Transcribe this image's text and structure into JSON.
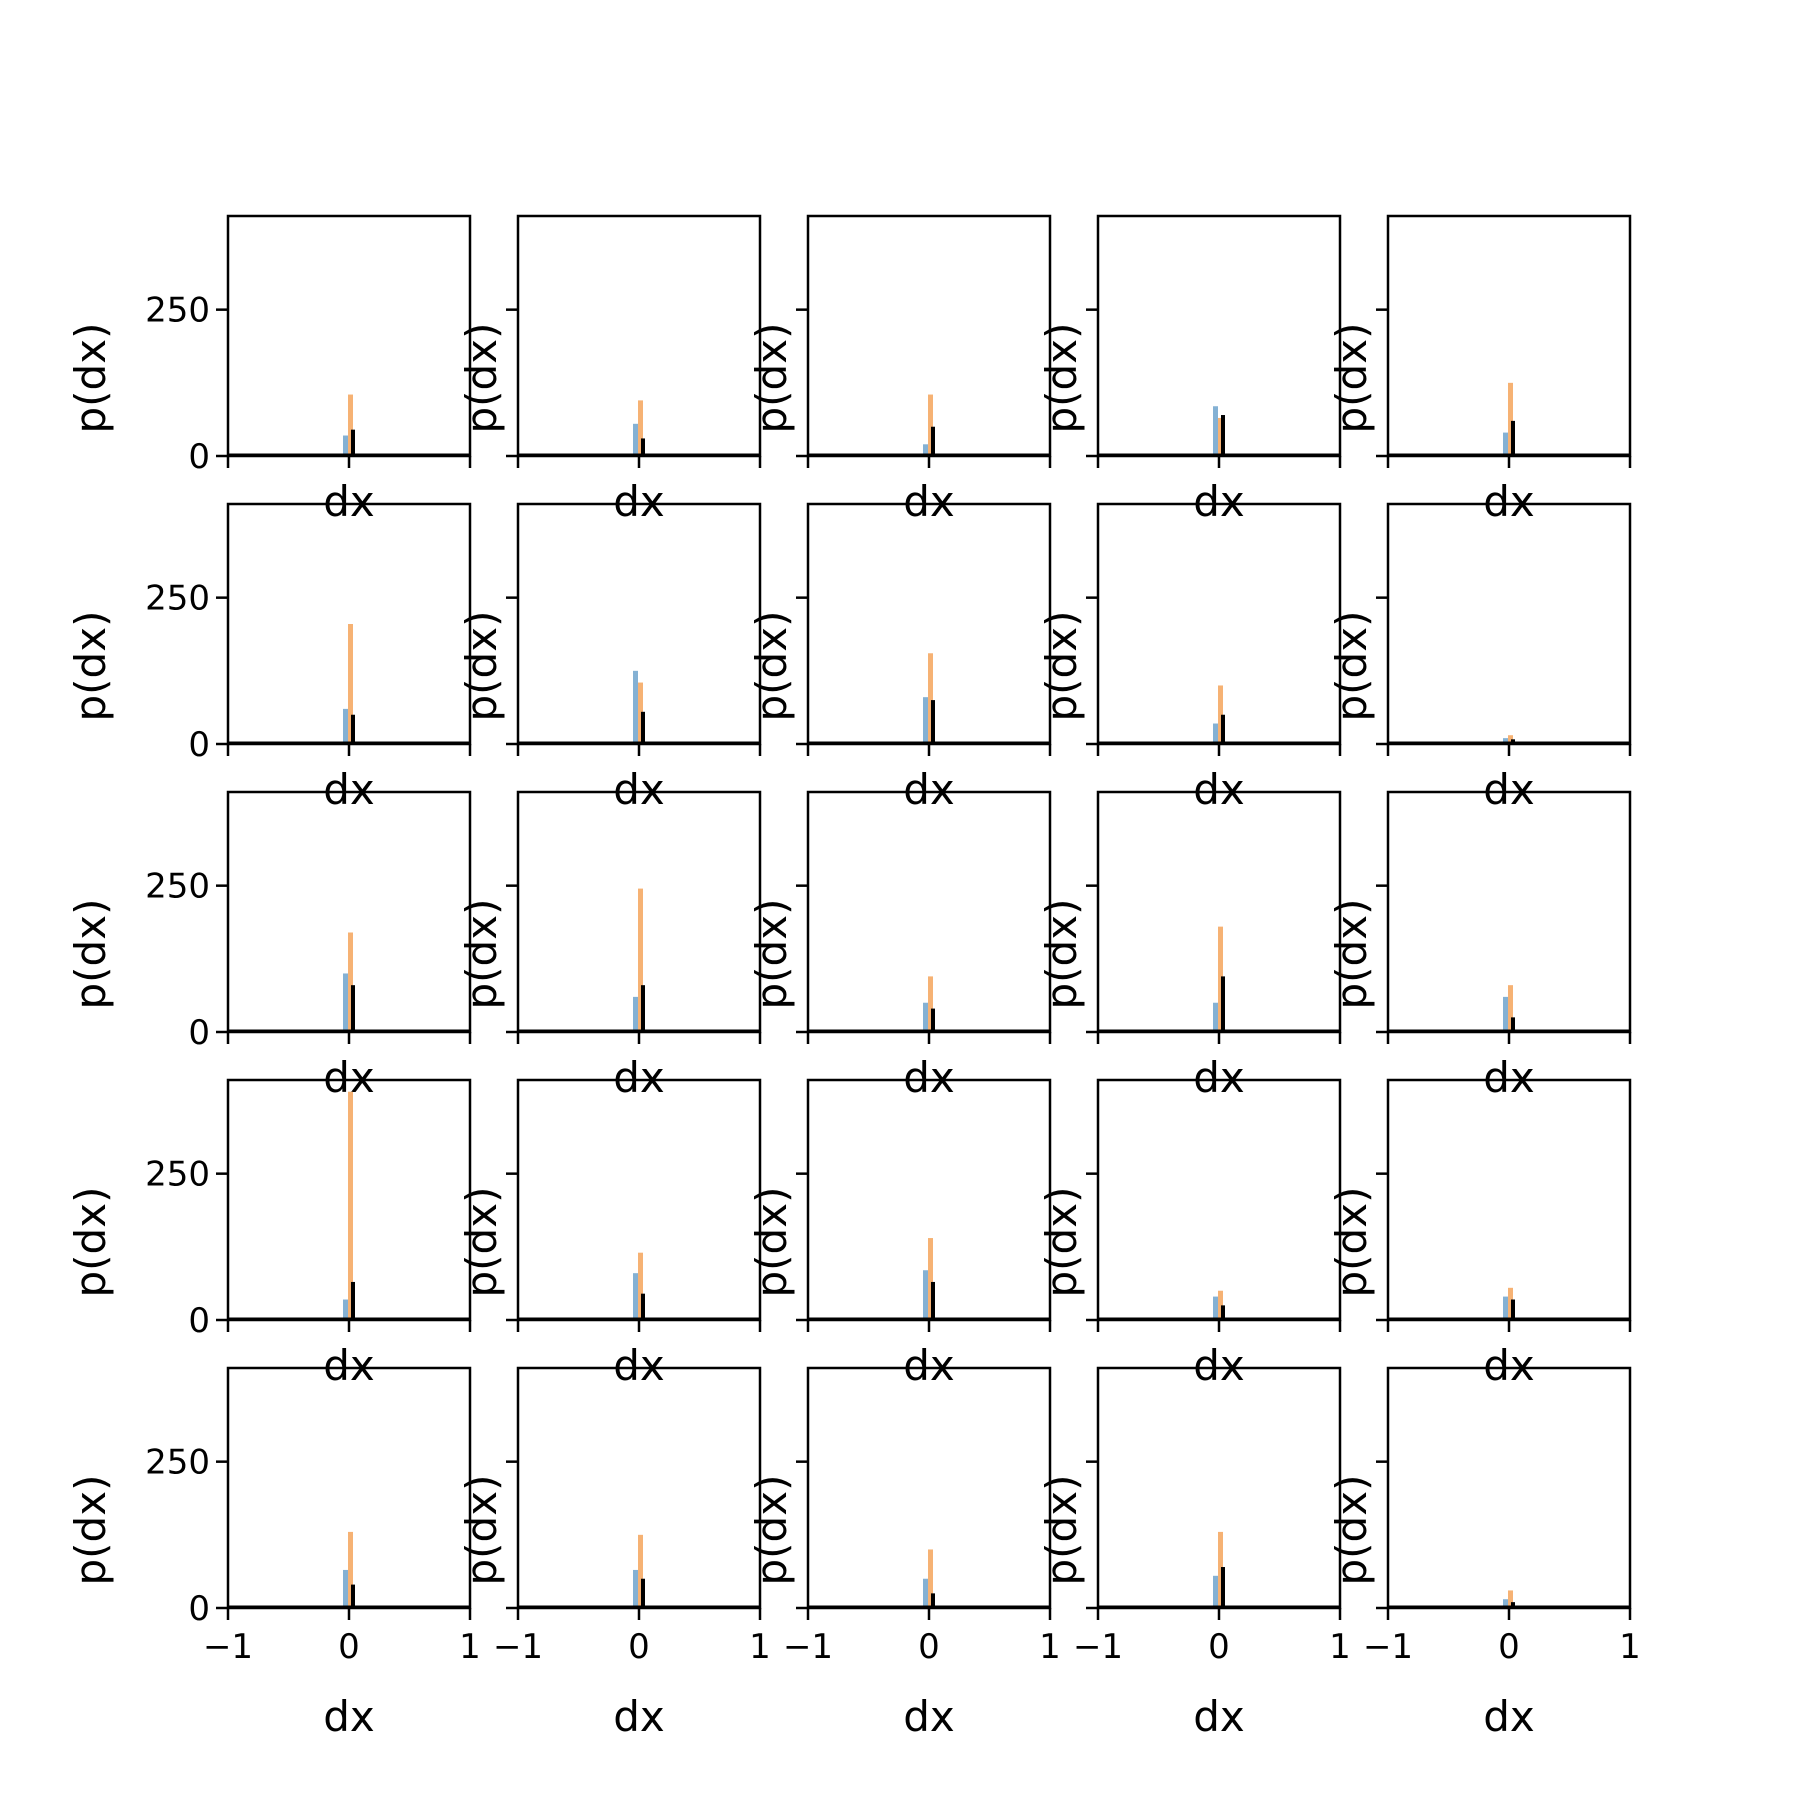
{
  "chart_data": {
    "type": "histogram-grid",
    "rows": 5,
    "cols": 5,
    "xlabel": "dx",
    "ylabel": "p(dx)",
    "xlim": [
      -1,
      1
    ],
    "ylim": [
      0,
      410
    ],
    "xticks": [
      -1,
      0,
      1
    ],
    "xtick_labels": [
      "−1",
      "0",
      "1"
    ],
    "yticks": [
      0,
      250
    ],
    "ytick_labels": [
      "0",
      "250"
    ],
    "colors": {
      "orange": "#f5a55c",
      "blue": "#6fa3cd",
      "black": "#000000"
    },
    "panels": [
      {
        "orange": 105,
        "blue": 35,
        "black": 45
      },
      {
        "orange": 95,
        "blue": 55,
        "black": 30
      },
      {
        "orange": 105,
        "blue": 20,
        "black": 50
      },
      {
        "orange": 65,
        "blue": 85,
        "black": 70
      },
      {
        "orange": 125,
        "blue": 40,
        "black": 60
      },
      {
        "orange": 205,
        "blue": 60,
        "black": 50
      },
      {
        "orange": 105,
        "blue": 125,
        "black": 55
      },
      {
        "orange": 155,
        "blue": 80,
        "black": 75
      },
      {
        "orange": 100,
        "blue": 35,
        "black": 50
      },
      {
        "orange": 15,
        "blue": 10,
        "black": 8
      },
      {
        "orange": 170,
        "blue": 100,
        "black": 80
      },
      {
        "orange": 245,
        "blue": 60,
        "black": 80
      },
      {
        "orange": 95,
        "blue": 50,
        "black": 40
      },
      {
        "orange": 180,
        "blue": 50,
        "black": 95
      },
      {
        "orange": 80,
        "blue": 60,
        "black": 25
      },
      {
        "orange": 390,
        "blue": 35,
        "black": 65
      },
      {
        "orange": 115,
        "blue": 80,
        "black": 45
      },
      {
        "orange": 140,
        "blue": 85,
        "black": 65
      },
      {
        "orange": 50,
        "blue": 40,
        "black": 25
      },
      {
        "orange": 55,
        "blue": 40,
        "black": 35
      },
      {
        "orange": 130,
        "blue": 65,
        "black": 40
      },
      {
        "orange": 125,
        "blue": 65,
        "black": 50
      },
      {
        "orange": 100,
        "blue": 50,
        "black": 25
      },
      {
        "orange": 130,
        "blue": 55,
        "black": 70
      },
      {
        "orange": 30,
        "blue": 15,
        "black": 10
      }
    ]
  }
}
